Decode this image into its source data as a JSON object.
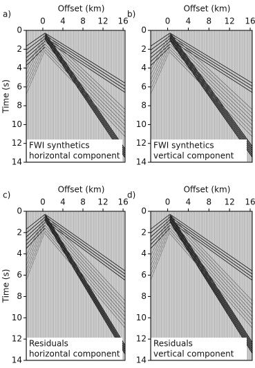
{
  "panels": [
    {
      "label": "a)",
      "x_axis_title": "Offset (km)",
      "y_axis_title": "Time (s)",
      "xlim": [
        -3.3,
        16.4
      ],
      "xticks": [
        0,
        4,
        8,
        12,
        16
      ],
      "ylim": [
        0,
        14
      ],
      "yticks": [
        0,
        2,
        4,
        6,
        8,
        10,
        12,
        14
      ],
      "caption": [
        "FWI synthetics",
        "horizontal component"
      ]
    },
    {
      "label": "b)",
      "x_axis_title": "Offset (km)",
      "xlim": [
        -3.3,
        16.4
      ],
      "xticks": [
        0,
        4,
        8,
        12,
        16
      ],
      "ylim": [
        0,
        14
      ],
      "yticks": [
        0,
        2,
        4,
        6,
        8,
        10,
        12,
        14
      ],
      "caption": [
        "FWI synthetics",
        "vertical component"
      ]
    },
    {
      "label": "c)",
      "x_axis_title": "Offset (km)",
      "y_axis_title": "Time (s)",
      "xlim": [
        -3.3,
        16.4
      ],
      "xticks": [
        0,
        4,
        8,
        12,
        16
      ],
      "ylim": [
        0,
        14
      ],
      "yticks": [
        0,
        2,
        4,
        6,
        8,
        10,
        12,
        14
      ],
      "caption": [
        "Residuals",
        "horizontal component"
      ]
    },
    {
      "label": "d)",
      "x_axis_title": "Offset (km)",
      "xlim": [
        -3.3,
        16.4
      ],
      "xticks": [
        0,
        4,
        8,
        12,
        16
      ],
      "ylim": [
        0,
        14
      ],
      "yticks": [
        0,
        2,
        4,
        6,
        8,
        10,
        12,
        14
      ],
      "caption": [
        "Residuals",
        "vertical component"
      ]
    }
  ]
}
